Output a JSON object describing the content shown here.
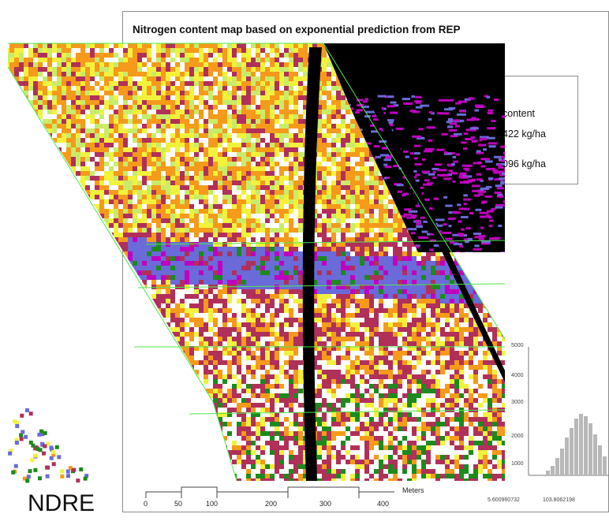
{
  "map": {
    "title": "Nitrogen content map based on exponential prediction from REP",
    "legend": {
      "heading": "content",
      "high": "422 kg/ha",
      "low": "096 kg/ha"
    },
    "colors": {
      "black": "#000000",
      "purple": "#c000c0",
      "blue": "#6a6ad8",
      "darkred": "#b0305a",
      "orange": "#f59a1a",
      "yellow": "#f2f23c",
      "lightgreen": "#c8ec6a",
      "green": "#1c8a1c",
      "boundary": "#4ee84e"
    }
  },
  "histogram": {
    "y_ticks": [
      "5000",
      "4000",
      "3000",
      "2000",
      "1000"
    ],
    "x_ticks": [
      "5.600960732",
      "103.8062198"
    ]
  },
  "scale_bar": {
    "ticks": [
      "0",
      "50",
      "100",
      "200",
      "300",
      "400"
    ],
    "unit": "Meters"
  },
  "caption": "NDRE"
}
